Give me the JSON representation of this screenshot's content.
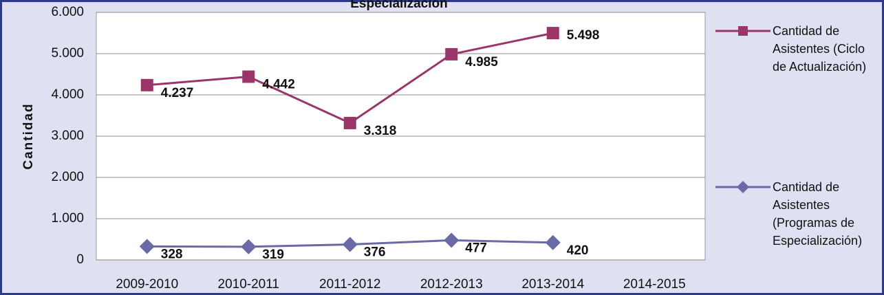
{
  "chart_data": {
    "type": "line",
    "title": "Especialización",
    "ylabel": "Cantidad",
    "categories": [
      "2009-2010",
      "2010-2011",
      "2011-2012",
      "2012-2013",
      "2013-2014",
      "2014-2015"
    ],
    "series": [
      {
        "name": "Cantidad de Asistentes (Ciclo de Actualización)",
        "color": "#9b3468",
        "marker": "square",
        "values": [
          4237,
          4442,
          3318,
          4985,
          5498,
          null
        ],
        "value_labels": [
          "4.237",
          "4.442",
          "3.318",
          "4.985",
          "5.498",
          null
        ]
      },
      {
        "name": "Cantidad de Asistentes (Programas de Especialización)",
        "color": "#6a6aa6",
        "marker": "diamond",
        "values": [
          328,
          319,
          376,
          477,
          420,
          null
        ]
      }
    ],
    "ylim": [
      0,
      6000
    ],
    "yticks": [
      0,
      {
        "value": 1000,
        "label": "1.000"
      },
      {
        "value": 2000,
        "label": "2.000"
      },
      {
        "value": 3000,
        "label": "3.000"
      },
      {
        "value": 4000,
        "label": "4.000"
      },
      {
        "value": 5000,
        "label": "5.000"
      },
      {
        "value": 6000,
        "label": "6.000"
      }
    ],
    "grid": true,
    "legend": "right"
  }
}
